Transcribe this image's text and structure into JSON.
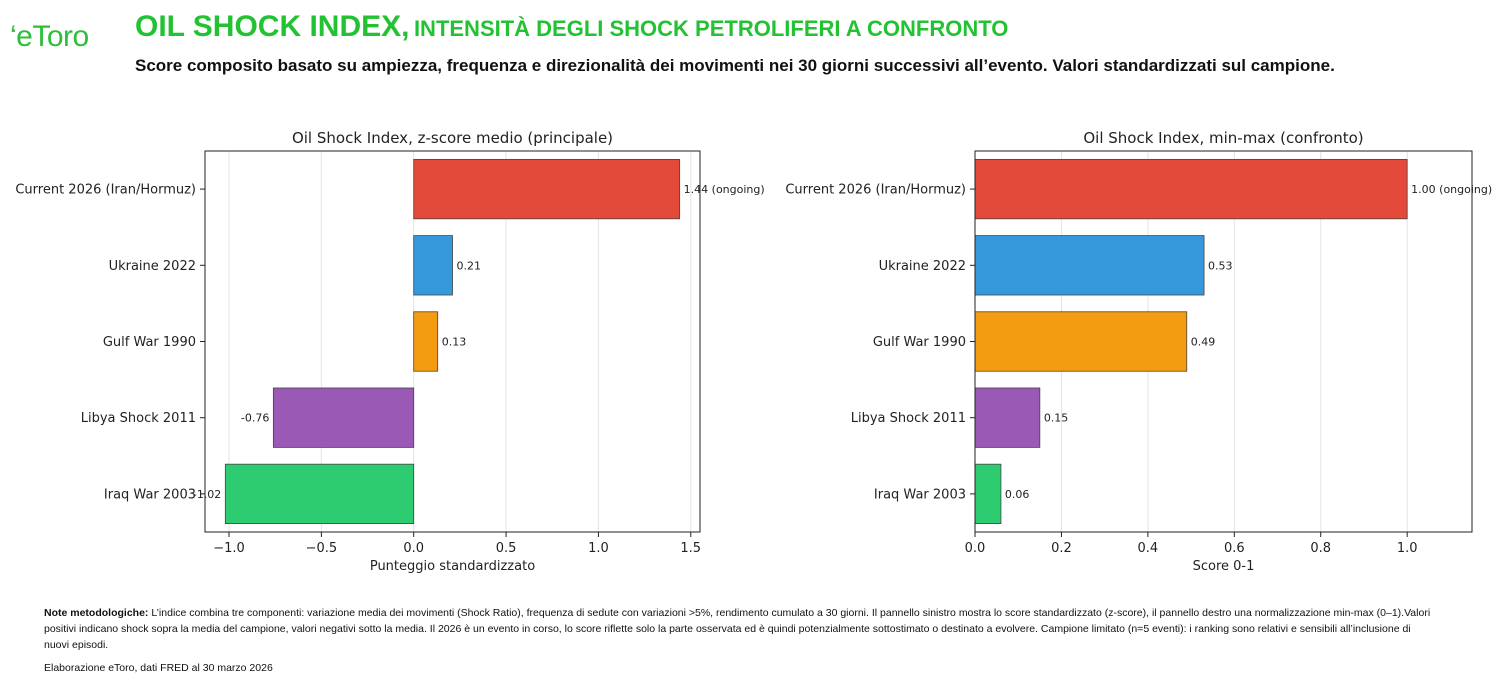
{
  "header": {
    "logo": "eToro",
    "title_main": "OIL SHOCK INDEX,",
    "title_rest": "INTENSITÀ DEGLI SHOCK PETROLIFERI A CONFRONTO",
    "subtitle": "Score composito basato su ampiezza, frequenza e direzionalità dei movimenti nei 30 giorni successivi all’evento. Valori standardizzati sul campione."
  },
  "chart_data": [
    {
      "type": "bar",
      "orientation": "horizontal",
      "title": "Oil Shock Index, z-score medio (principale)",
      "xlabel": "Punteggio standardizzato",
      "ylabel": "",
      "categories": [
        "Current 2026 (Iran/Hormuz)",
        "Ukraine 2022",
        "Gulf War 1990",
        "Libya Shock 2011",
        "Iraq War 2003"
      ],
      "values": [
        1.44,
        0.21,
        0.13,
        -0.76,
        -1.02
      ],
      "value_labels": [
        "1.44 (ongoing)",
        "0.21",
        "0.13",
        "-0.76",
        "-1.02"
      ],
      "colors": [
        "#e34a3a",
        "#3498db",
        "#f39c12",
        "#9b59b6",
        "#2ecc71"
      ],
      "xlim": [
        -1.13,
        1.55
      ],
      "xticks": [
        -1.0,
        -0.5,
        0.0,
        0.5,
        1.0,
        1.5
      ],
      "xtick_labels": [
        "−1.0",
        "−0.5",
        "0.0",
        "0.5",
        "1.0",
        "1.5"
      ],
      "grid": "vertical"
    },
    {
      "type": "bar",
      "orientation": "horizontal",
      "title": "Oil Shock Index, min-max (confronto)",
      "xlabel": "Score 0-1",
      "ylabel": "",
      "categories": [
        "Current 2026 (Iran/Hormuz)",
        "Ukraine 2022",
        "Gulf War 1990",
        "Libya Shock 2011",
        "Iraq War 2003"
      ],
      "values": [
        1.0,
        0.53,
        0.49,
        0.15,
        0.06
      ],
      "value_labels": [
        "1.00 (ongoing)",
        "0.53",
        "0.49",
        "0.15",
        "0.06"
      ],
      "colors": [
        "#e34a3a",
        "#3498db",
        "#f39c12",
        "#9b59b6",
        "#2ecc71"
      ],
      "xlim": [
        0.0,
        1.15
      ],
      "xticks": [
        0.0,
        0.2,
        0.4,
        0.6,
        0.8,
        1.0
      ],
      "xtick_labels": [
        "0.0",
        "0.2",
        "0.4",
        "0.6",
        "0.8",
        "1.0"
      ],
      "grid": "vertical"
    }
  ],
  "footer": {
    "notes_label": "Note metodologiche:",
    "notes_text": " L’indice combina tre componenti: variazione media dei movimenti (Shock Ratio), frequenza di sedute con variazioni >5%, rendimento cumulato a 30 giorni. Il pannello sinistro mostra lo score standardizzato (z-score), il pannello destro una normalizzazione min-max (0–1).Valori positivi indicano shock sopra la media del campione, valori negativi sotto la media. Il 2026 è un evento in corso, lo score riflette solo la parte osservata ed è quindi potenzialmente sottostimato o destinato a evolvere. Campione limitato (n=5 eventi): i ranking sono relativi e sensibili all’inclusione di nuovi episodi.",
    "source": "Elaborazione eToro, dati FRED al 30 marzo 2026"
  }
}
